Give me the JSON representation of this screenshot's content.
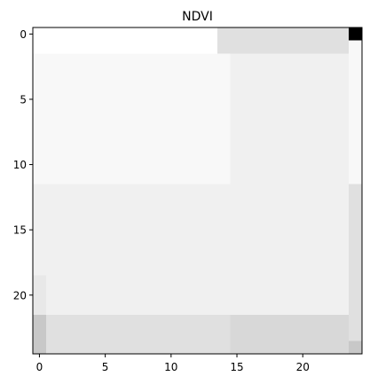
{
  "chart_data": {
    "type": "heatmap",
    "title": "NDVI",
    "colormap": "gray",
    "xlim": [
      -0.5,
      24.5
    ],
    "ylim": [
      24.5,
      -0.5
    ],
    "xticks": [
      0,
      5,
      10,
      15,
      20
    ],
    "yticks": [
      0,
      5,
      10,
      15,
      20
    ],
    "xticklabels": [
      "0",
      "5",
      "10",
      "15",
      "20"
    ],
    "yticklabels": [
      "0",
      "5",
      "10",
      "15",
      "20"
    ],
    "xlabel": "",
    "ylabel": "",
    "grid": false,
    "regions": [
      {
        "rows": [
          0,
          1
        ],
        "cols": [
          0,
          13
        ],
        "color": "#ffffff"
      },
      {
        "rows": [
          0,
          1
        ],
        "cols": [
          14,
          23
        ],
        "color": "#e0e0e0"
      },
      {
        "rows": [
          0,
          0
        ],
        "cols": [
          24,
          24
        ],
        "color": "#000000"
      },
      {
        "rows": [
          1,
          1
        ],
        "cols": [
          24,
          24
        ],
        "color": "#f8f8f8"
      },
      {
        "rows": [
          2,
          11
        ],
        "cols": [
          0,
          14
        ],
        "color": "#f8f8f8"
      },
      {
        "rows": [
          2,
          11
        ],
        "cols": [
          15,
          23
        ],
        "color": "#f0f0f0"
      },
      {
        "rows": [
          2,
          11
        ],
        "cols": [
          24,
          24
        ],
        "color": "#f8f8f8"
      },
      {
        "rows": [
          12,
          21
        ],
        "cols": [
          0,
          14
        ],
        "color": "#f0f0f0"
      },
      {
        "rows": [
          12,
          21
        ],
        "cols": [
          15,
          23
        ],
        "color": "#f0f0f0"
      },
      {
        "rows": [
          12,
          21
        ],
        "cols": [
          24,
          24
        ],
        "color": "#e0e0e0"
      },
      {
        "rows": [
          19,
          21
        ],
        "cols": [
          0,
          0
        ],
        "color": "#e8e8e8"
      },
      {
        "rows": [
          22,
          24
        ],
        "cols": [
          0,
          0
        ],
        "color": "#c8c8c8"
      },
      {
        "rows": [
          22,
          24
        ],
        "cols": [
          1,
          14
        ],
        "color": "#e0e0e0"
      },
      {
        "rows": [
          22,
          24
        ],
        "cols": [
          15,
          23
        ],
        "color": "#d8d8d8"
      },
      {
        "rows": [
          22,
          23
        ],
        "cols": [
          24,
          24
        ],
        "color": "#e0e0e0"
      },
      {
        "rows": [
          24,
          24
        ],
        "cols": [
          24,
          24
        ],
        "color": "#c8c8c8"
      }
    ]
  }
}
